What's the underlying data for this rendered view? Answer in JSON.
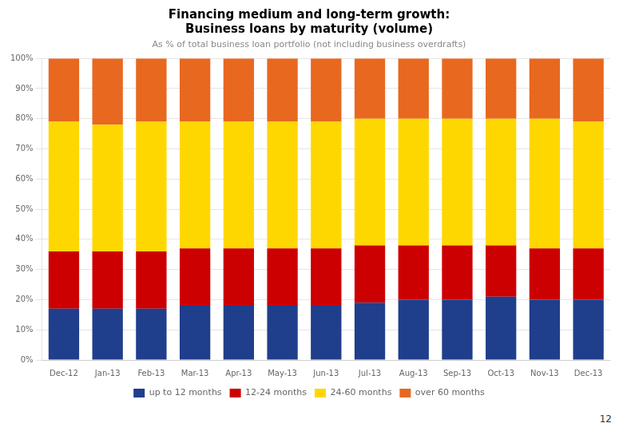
{
  "chart_data": {
    "type": "bar",
    "title": "Financing medium and long-term growth:\nBusiness loans by maturity (volume)",
    "subtitle": "As % of total business loan portfolio (not including business overdrafts)",
    "categories": [
      "Dec-12",
      "Jan-13",
      "Feb-13",
      "Mar-13",
      "Apr-13",
      "May-13",
      "Jun-13",
      "Jul-13",
      "Aug-13",
      "Sep-13",
      "Oct-13",
      "Nov-13",
      "Dec-13"
    ],
    "series": [
      {
        "name": "up to 12 months",
        "color": "#1F3E8C",
        "values": [
          17,
          17,
          17,
          18,
          18,
          18,
          18,
          19,
          20,
          20,
          21,
          20,
          20
        ]
      },
      {
        "name": "12-24 months",
        "color": "#CC0000",
        "values": [
          19,
          19,
          19,
          19,
          19,
          19,
          19,
          19,
          18,
          18,
          17,
          17,
          17
        ]
      },
      {
        "name": "24-60 months",
        "color": "#FFD700",
        "values": [
          43,
          42,
          43,
          42,
          42,
          42,
          42,
          42,
          42,
          42,
          42,
          43,
          42
        ]
      },
      {
        "name": "over 60 months",
        "color": "#E86820",
        "values": [
          21,
          22,
          21,
          21,
          21,
          21,
          21,
          20,
          20,
          20,
          20,
          20,
          21
        ]
      }
    ],
    "stacked": true,
    "ylim": [
      0,
      100
    ],
    "yticks": [
      {
        "value": 0,
        "label": "0%"
      },
      {
        "value": 10,
        "label": "10%"
      },
      {
        "value": 20,
        "label": "20%"
      },
      {
        "value": 30,
        "label": "30%"
      },
      {
        "value": 40,
        "label": "40%"
      },
      {
        "value": 50,
        "label": "50%"
      },
      {
        "value": 60,
        "label": "60%"
      },
      {
        "value": 70,
        "label": "70%"
      },
      {
        "value": 80,
        "label": "80%"
      },
      {
        "value": 90,
        "label": "90%"
      },
      {
        "value": 100,
        "label": "100%"
      }
    ],
    "grid": true,
    "legend": "bottom",
    "annotations": [
      "12"
    ]
  }
}
